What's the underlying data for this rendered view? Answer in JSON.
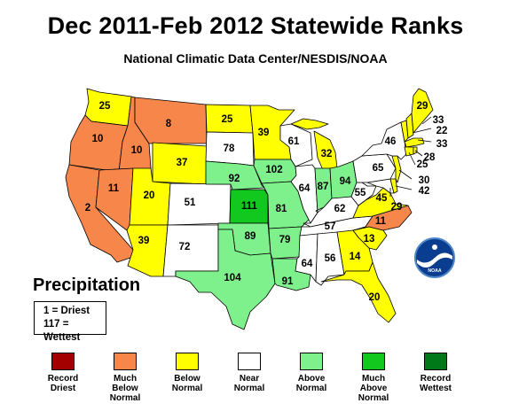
{
  "header": {
    "title": "Dec 2011-Feb 2012 Statewide Ranks",
    "subtitle": "National Climatic Data Center/NESDIS/NOAA"
  },
  "map": {
    "variable": "Precipitation",
    "key_lines": [
      "1 = Driest",
      "117 = Wettest"
    ],
    "ranks": [
      {
        "state": "WA",
        "rank": "25",
        "category": "below_normal"
      },
      {
        "state": "OR",
        "rank": "10",
        "category": "much_below_normal"
      },
      {
        "state": "ID",
        "rank": "10",
        "category": "much_below_normal"
      },
      {
        "state": "MT",
        "rank": "8",
        "category": "much_below_normal"
      },
      {
        "state": "CA",
        "rank": "2",
        "category": "much_below_normal"
      },
      {
        "state": "NV",
        "rank": "11",
        "category": "much_below_normal"
      },
      {
        "state": "WY",
        "rank": "37",
        "category": "below_normal"
      },
      {
        "state": "UT",
        "rank": "20",
        "category": "below_normal"
      },
      {
        "state": "AZ",
        "rank": "39",
        "category": "below_normal"
      },
      {
        "state": "CO",
        "rank": "51",
        "category": "near_normal"
      },
      {
        "state": "NM",
        "rank": "72",
        "category": "near_normal"
      },
      {
        "state": "ND",
        "rank": "25",
        "category": "below_normal"
      },
      {
        "state": "SD",
        "rank": "78",
        "category": "near_normal"
      },
      {
        "state": "NE",
        "rank": "92",
        "category": "above_normal"
      },
      {
        "state": "KS",
        "rank": "111",
        "category": "much_above_normal"
      },
      {
        "state": "OK",
        "rank": "89",
        "category": "above_normal"
      },
      {
        "state": "TX",
        "rank": "104",
        "category": "above_normal"
      },
      {
        "state": "MN",
        "rank": "39",
        "category": "below_normal"
      },
      {
        "state": "IA",
        "rank": "102",
        "category": "above_normal"
      },
      {
        "state": "MO",
        "rank": "81",
        "category": "above_normal"
      },
      {
        "state": "AR",
        "rank": "79",
        "category": "above_normal"
      },
      {
        "state": "LA",
        "rank": "91",
        "category": "above_normal"
      },
      {
        "state": "WI",
        "rank": "61",
        "category": "near_normal"
      },
      {
        "state": "IL",
        "rank": "64",
        "category": "near_normal"
      },
      {
        "state": "MI",
        "rank": "32",
        "category": "below_normal"
      },
      {
        "state": "IN",
        "rank": "87",
        "category": "above_normal"
      },
      {
        "state": "OH",
        "rank": "94",
        "category": "above_normal"
      },
      {
        "state": "KY",
        "rank": "62",
        "category": "near_normal"
      },
      {
        "state": "TN",
        "rank": "57",
        "category": "near_normal"
      },
      {
        "state": "MS",
        "rank": "64",
        "category": "near_normal"
      },
      {
        "state": "AL",
        "rank": "56",
        "category": "near_normal"
      },
      {
        "state": "GA",
        "rank": "14",
        "category": "below_normal"
      },
      {
        "state": "FL",
        "rank": "20",
        "category": "below_normal"
      },
      {
        "state": "SC",
        "rank": "13",
        "category": "below_normal"
      },
      {
        "state": "NC",
        "rank": "11",
        "category": "much_below_normal"
      },
      {
        "state": "VA",
        "rank": "29",
        "category": "below_normal"
      },
      {
        "state": "WV",
        "rank": "55",
        "category": "near_normal"
      },
      {
        "state": "MD",
        "rank": "45",
        "category": "near_normal"
      },
      {
        "state": "DE",
        "rank": "42",
        "category": "below_normal"
      },
      {
        "state": "NJ",
        "rank": "30",
        "category": "below_normal"
      },
      {
        "state": "PA",
        "rank": "65",
        "category": "near_normal"
      },
      {
        "state": "NY",
        "rank": "46",
        "category": "near_normal"
      },
      {
        "state": "CT",
        "rank": "25",
        "category": "below_normal"
      },
      {
        "state": "RI",
        "rank": "28",
        "category": "below_normal"
      },
      {
        "state": "MA",
        "rank": "33",
        "category": "below_normal"
      },
      {
        "state": "NH",
        "rank": "22",
        "category": "below_normal"
      },
      {
        "state": "VT",
        "rank": "33",
        "category": "below_normal"
      },
      {
        "state": "ME",
        "rank": "29",
        "category": "below_normal"
      }
    ]
  },
  "legend": [
    {
      "key": "record_driest",
      "lines": [
        "Record",
        "Driest"
      ],
      "color": "#a30000"
    },
    {
      "key": "much_below_normal",
      "lines": [
        "Much",
        "Below",
        "Normal"
      ],
      "color": "#f7864a"
    },
    {
      "key": "below_normal",
      "lines": [
        "Below",
        "Normal"
      ],
      "color": "#ffff00"
    },
    {
      "key": "near_normal",
      "lines": [
        "Near",
        "Normal"
      ],
      "color": "#ffffff"
    },
    {
      "key": "above_normal",
      "lines": [
        "Above",
        "Normal"
      ],
      "color": "#7ef08c"
    },
    {
      "key": "much_above_normal",
      "lines": [
        "Much",
        "Above",
        "Normal"
      ],
      "color": "#12c81e"
    },
    {
      "key": "record_wettest",
      "lines": [
        "Record",
        "Wettest"
      ],
      "color": "#007a18"
    }
  ],
  "logo": {
    "text": "NOAA",
    "icon": "noaa-logo-icon"
  }
}
